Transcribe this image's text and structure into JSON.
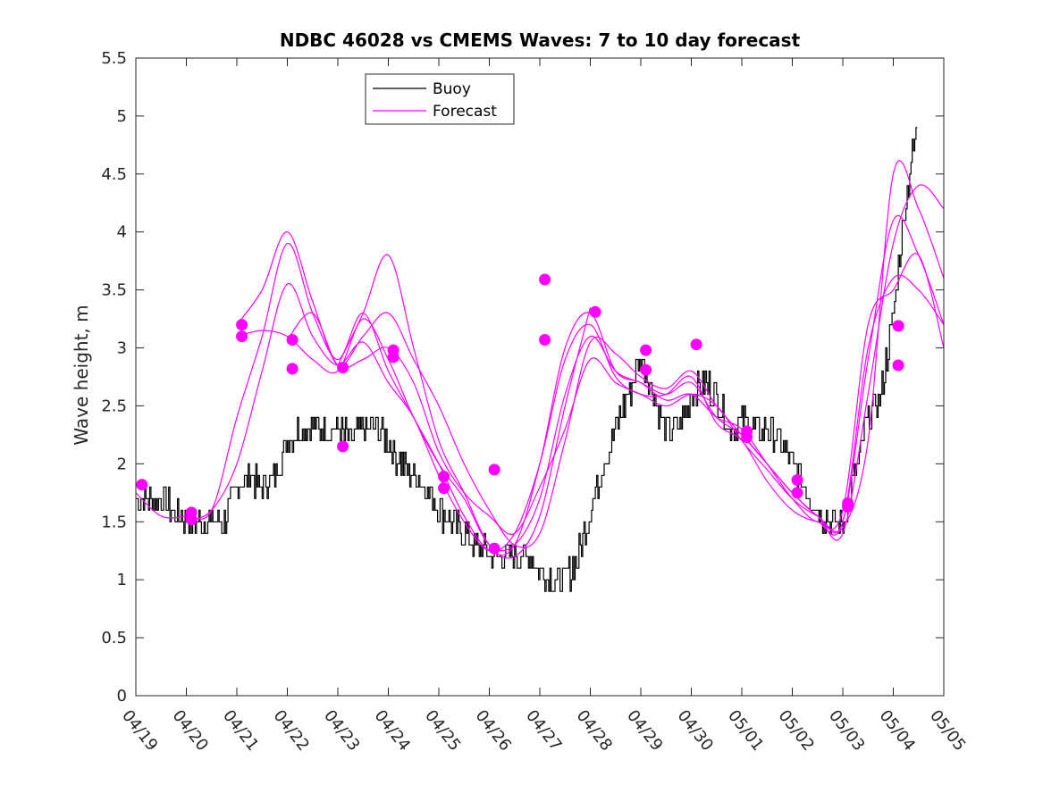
{
  "chart_data": {
    "type": "line",
    "title": "NDBC 46028 vs CMEMS Waves: 7 to 10 day forecast",
    "xlabel": "",
    "ylabel": "Wave height, m",
    "x_range": [
      "04/19",
      "05/05"
    ],
    "ylim": [
      0,
      5.5
    ],
    "y_ticks": [
      "0",
      "0.5",
      "1",
      "1.5",
      "2",
      "2.5",
      "3",
      "3.5",
      "4",
      "4.5",
      "5",
      "5.5"
    ],
    "x_ticks": [
      "04/19",
      "04/20",
      "04/21",
      "04/22",
      "04/23",
      "04/24",
      "04/25",
      "04/26",
      "04/27",
      "04/28",
      "04/29",
      "04/30",
      "05/01",
      "05/02",
      "05/03",
      "05/04",
      "05/05"
    ],
    "grid": false,
    "legend_position": "top-center",
    "colors": {
      "buoy": "#000000",
      "forecast": "#ff00ff"
    },
    "series": [
      {
        "name": "Buoy",
        "x_days_from_0419": [
          0,
          0.25,
          0.5,
          0.75,
          1,
          1.25,
          1.5,
          1.75,
          2,
          2.25,
          2.5,
          2.75,
          3,
          3.25,
          3.5,
          3.75,
          4,
          4.25,
          4.5,
          4.75,
          5,
          5.25,
          5.5,
          5.75,
          6,
          6.25,
          6.5,
          6.75,
          7,
          7.25,
          7.5,
          7.75,
          8,
          8.25,
          8.5,
          8.75,
          9,
          9.25,
          9.5,
          9.75,
          10,
          10.25,
          10.5,
          10.75,
          11,
          11.25,
          11.5,
          11.75,
          12,
          12.25,
          12.5,
          12.75,
          13,
          13.25,
          13.5,
          13.75,
          14,
          14.25,
          14.5,
          14.75,
          15,
          15.25,
          15.5
        ],
        "values": [
          1.7,
          1.7,
          1.7,
          1.6,
          1.5,
          1.5,
          1.5,
          1.5,
          1.8,
          1.9,
          1.8,
          1.9,
          2.2,
          2.3,
          2.3,
          2.3,
          2.3,
          2.2,
          2.3,
          2.3,
          2.2,
          2.0,
          1.9,
          1.8,
          1.6,
          1.5,
          1.4,
          1.3,
          1.2,
          1.2,
          1.2,
          1.2,
          1.1,
          1.0,
          1.0,
          1.2,
          1.6,
          2.0,
          2.3,
          2.6,
          2.9,
          2.6,
          2.3,
          2.3,
          2.6,
          2.7,
          2.6,
          2.3,
          2.4,
          2.3,
          2.3,
          2.2,
          2.0,
          1.8,
          1.6,
          1.5,
          1.5,
          1.9,
          2.4,
          2.6,
          3.3,
          4.3,
          5.0
        ]
      },
      {
        "name": "Forecast",
        "lines": [
          {
            "x": [
              0,
              0.5,
              1,
              1.5,
              2,
              2.5,
              3,
              3.5,
              4,
              4.5,
              5,
              5.5,
              6,
              6.5,
              7,
              7.5,
              8,
              8.5,
              9,
              9.5,
              10,
              10.5,
              11,
              11.5,
              12,
              12.5,
              13,
              13.5,
              14,
              14.5,
              15,
              15.5,
              16
            ],
            "y": [
              1.75,
              1.55,
              1.55,
              1.6,
              2.4,
              3.1,
              3.9,
              3.3,
              2.9,
              3.3,
              2.8,
              2.4,
              2.0,
              1.55,
              1.25,
              1.3,
              2.0,
              3.0,
              3.3,
              2.8,
              2.7,
              2.55,
              2.6,
              2.4,
              2.3,
              2.0,
              1.7,
              1.5,
              1.6,
              3.2,
              3.5,
              3.8,
              3.0
            ]
          },
          {
            "x": [
              1,
              1.5,
              2,
              2.5,
              3,
              3.5,
              4,
              4.5,
              5,
              5.5,
              6,
              6.5,
              7,
              7.5,
              8,
              8.5,
              9,
              9.5,
              10,
              10.5,
              11,
              11.5,
              12,
              12.5,
              13,
              13.5,
              14,
              14.5,
              15,
              15.5,
              16
            ],
            "y": [
              1.5,
              1.6,
              2.0,
              2.8,
              3.55,
              3.1,
              2.85,
              3.05,
              2.7,
              2.4,
              1.9,
              1.5,
              1.25,
              1.4,
              2.0,
              2.9,
              3.2,
              2.75,
              2.6,
              2.6,
              2.75,
              2.35,
              2.2,
              1.85,
              1.6,
              1.5,
              1.5,
              3.0,
              3.6,
              3.5,
              3.2
            ]
          },
          {
            "x": [
              2,
              2.5,
              3,
              3.5,
              4,
              4.5,
              5,
              5.5,
              6,
              6.5,
              7,
              7.5,
              8,
              8.5,
              9,
              9.5,
              10,
              10.5,
              11,
              11.5,
              12,
              12.5,
              13,
              13.5,
              14,
              14.5,
              15,
              15.5,
              16
            ],
            "y": [
              3.1,
              3.15,
              3.1,
              2.9,
              2.8,
              3.25,
              2.9,
              2.4,
              2.0,
              1.7,
              1.3,
              1.3,
              1.7,
              2.6,
              3.1,
              2.8,
              2.7,
              2.6,
              2.7,
              2.4,
              2.25,
              2.0,
              1.75,
              1.55,
              1.4,
              2.6,
              3.9,
              4.4,
              4.2
            ]
          },
          {
            "x": [
              2,
              2.5,
              3,
              3.5,
              4,
              4.5,
              5,
              5.5,
              6,
              6.5,
              7,
              7.5,
              8,
              8.5,
              9,
              9.5,
              10,
              10.5,
              11,
              11.5,
              12,
              12.5,
              13,
              13.5,
              14,
              14.5,
              15,
              15.5,
              16
            ],
            "y": [
              3.2,
              3.5,
              4.0,
              3.4,
              2.85,
              3.1,
              3.3,
              2.9,
              2.5,
              2.0,
              1.6,
              1.3,
              1.4,
              2.2,
              3.05,
              2.95,
              2.75,
              2.65,
              2.8,
              2.5,
              2.25,
              2.0,
              1.75,
              1.55,
              1.45,
              2.2,
              4.5,
              4.2,
              3.6
            ]
          },
          {
            "x": [
              3,
              3.5,
              4,
              4.5,
              5,
              5.5,
              6,
              6.5,
              7,
              7.5,
              8,
              8.5,
              9,
              9.5,
              10,
              10.5,
              11,
              11.5,
              12,
              12.5,
              13,
              13.5,
              14,
              14.5,
              15,
              15.5,
              16
            ],
            "y": [
              3.07,
              3.3,
              2.85,
              2.9,
              3.0,
              2.7,
              2.1,
              1.75,
              1.55,
              1.4,
              1.8,
              2.3,
              2.9,
              2.7,
              2.6,
              2.5,
              2.6,
              2.5,
              2.2,
              1.95,
              1.7,
              1.55,
              1.5,
              2.9,
              4.1,
              3.8,
              3.2
            ]
          },
          {
            "x": [
              4,
              4.5,
              5,
              5.5,
              6,
              6.5,
              7,
              7.5,
              8,
              8.5,
              9
            ],
            "y": [
              2.85,
              3.3,
              3.8,
              3.0,
              2.2,
              1.75,
              1.3,
              1.2,
              1.55,
              2.5,
              3.35
            ]
          }
        ]
      }
    ],
    "forecast_markers": [
      {
        "x": 0.12,
        "y": 1.82
      },
      {
        "x": 1.1,
        "y": 1.58
      },
      {
        "x": 1.1,
        "y": 1.52
      },
      {
        "x": 2.1,
        "y": 3.2
      },
      {
        "x": 2.1,
        "y": 3.1
      },
      {
        "x": 3.1,
        "y": 3.07
      },
      {
        "x": 3.1,
        "y": 2.82
      },
      {
        "x": 4.1,
        "y": 2.83
      },
      {
        "x": 4.1,
        "y": 2.15
      },
      {
        "x": 5.1,
        "y": 2.98
      },
      {
        "x": 5.1,
        "y": 2.92
      },
      {
        "x": 6.1,
        "y": 1.89
      },
      {
        "x": 6.1,
        "y": 1.79
      },
      {
        "x": 7.1,
        "y": 1.95
      },
      {
        "x": 7.1,
        "y": 1.27
      },
      {
        "x": 8.1,
        "y": 3.59
      },
      {
        "x": 8.1,
        "y": 3.07
      },
      {
        "x": 9.1,
        "y": 3.31
      },
      {
        "x": 10.1,
        "y": 2.98
      },
      {
        "x": 10.1,
        "y": 2.81
      },
      {
        "x": 11.1,
        "y": 3.03
      },
      {
        "x": 12.1,
        "y": 2.28
      },
      {
        "x": 12.1,
        "y": 2.23
      },
      {
        "x": 13.1,
        "y": 1.86
      },
      {
        "x": 13.1,
        "y": 1.75
      },
      {
        "x": 14.1,
        "y": 1.66
      },
      {
        "x": 14.1,
        "y": 1.63
      },
      {
        "x": 15.1,
        "y": 3.19
      },
      {
        "x": 15.1,
        "y": 2.85
      }
    ],
    "legend": [
      {
        "label": "Buoy",
        "color": "#000000"
      },
      {
        "label": "Forecast",
        "color": "#ff00ff"
      }
    ]
  }
}
